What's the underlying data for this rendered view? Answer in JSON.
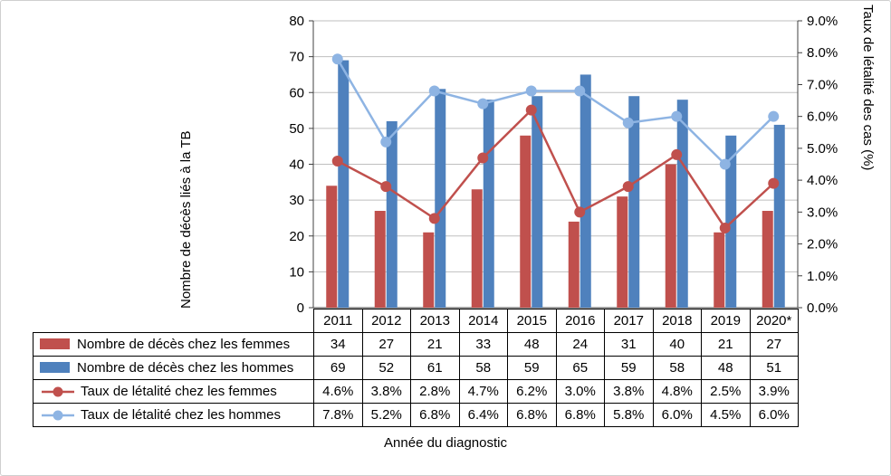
{
  "chart_data": {
    "type": "combo",
    "title": "",
    "xlabel": "Année du diagnostic",
    "ylabel_left": "Nombre de décès liés à la TB",
    "ylabel_right": "Taux de létalité des cas (%)",
    "grid": true,
    "legend_position": "table-left",
    "categories": [
      "2011",
      "2012",
      "2013",
      "2014",
      "2015",
      "2016",
      "2017",
      "2018",
      "2019",
      "2020*"
    ],
    "left_axis": {
      "min": 0,
      "max": 80,
      "step": 10,
      "tick_labels": [
        "0",
        "10",
        "20",
        "30",
        "40",
        "50",
        "60",
        "70",
        "80"
      ]
    },
    "right_axis": {
      "min": 0,
      "max": 9,
      "step": 1,
      "tick_labels": [
        "0.0%",
        "1.0%",
        "2.0%",
        "3.0%",
        "4.0%",
        "5.0%",
        "6.0%",
        "7.0%",
        "8.0%",
        "9.0%"
      ]
    },
    "series": [
      {
        "name": "Nombre de décès chez les femmes",
        "type": "bar",
        "axis": "left",
        "color": "#C0504D",
        "values": [
          34,
          27,
          21,
          33,
          48,
          24,
          31,
          40,
          21,
          27
        ],
        "display": [
          "34",
          "27",
          "21",
          "33",
          "48",
          "24",
          "31",
          "40",
          "21",
          "27"
        ]
      },
      {
        "name": "Nombre de décès chez les hommes",
        "type": "bar",
        "axis": "left",
        "color": "#4F81BD",
        "values": [
          69,
          52,
          61,
          58,
          59,
          65,
          59,
          58,
          48,
          51
        ],
        "display": [
          "69",
          "52",
          "61",
          "58",
          "59",
          "65",
          "59",
          "58",
          "48",
          "51"
        ]
      },
      {
        "name": "Taux de létalité chez les femmes",
        "type": "line",
        "axis": "right",
        "color": "#C0504D",
        "values": [
          4.6,
          3.8,
          2.8,
          4.7,
          6.2,
          3.0,
          3.8,
          4.8,
          2.5,
          3.9
        ],
        "display": [
          "4.6%",
          "3.8%",
          "2.8%",
          "4.7%",
          "6.2%",
          "3.0%",
          "3.8%",
          "4.8%",
          "2.5%",
          "3.9%"
        ]
      },
      {
        "name": "Taux de létalité chez les hommes",
        "type": "line",
        "axis": "right",
        "color": "#8EB4E3",
        "values": [
          7.8,
          5.2,
          6.8,
          6.4,
          6.8,
          6.8,
          5.8,
          6.0,
          4.5,
          6.0
        ],
        "display": [
          "7.8%",
          "5.2%",
          "6.8%",
          "6.4%",
          "6.8%",
          "6.8%",
          "5.8%",
          "6.0%",
          "4.5%",
          "6.0%"
        ]
      }
    ],
    "colors": {
      "gridline": "#BFBFBF",
      "axis_line": "#404040",
      "bar_femmes": "#C0504D",
      "bar_hommes": "#4F81BD",
      "line_femmes": "#C0504D",
      "line_hommes": "#8EB4E3"
    }
  }
}
